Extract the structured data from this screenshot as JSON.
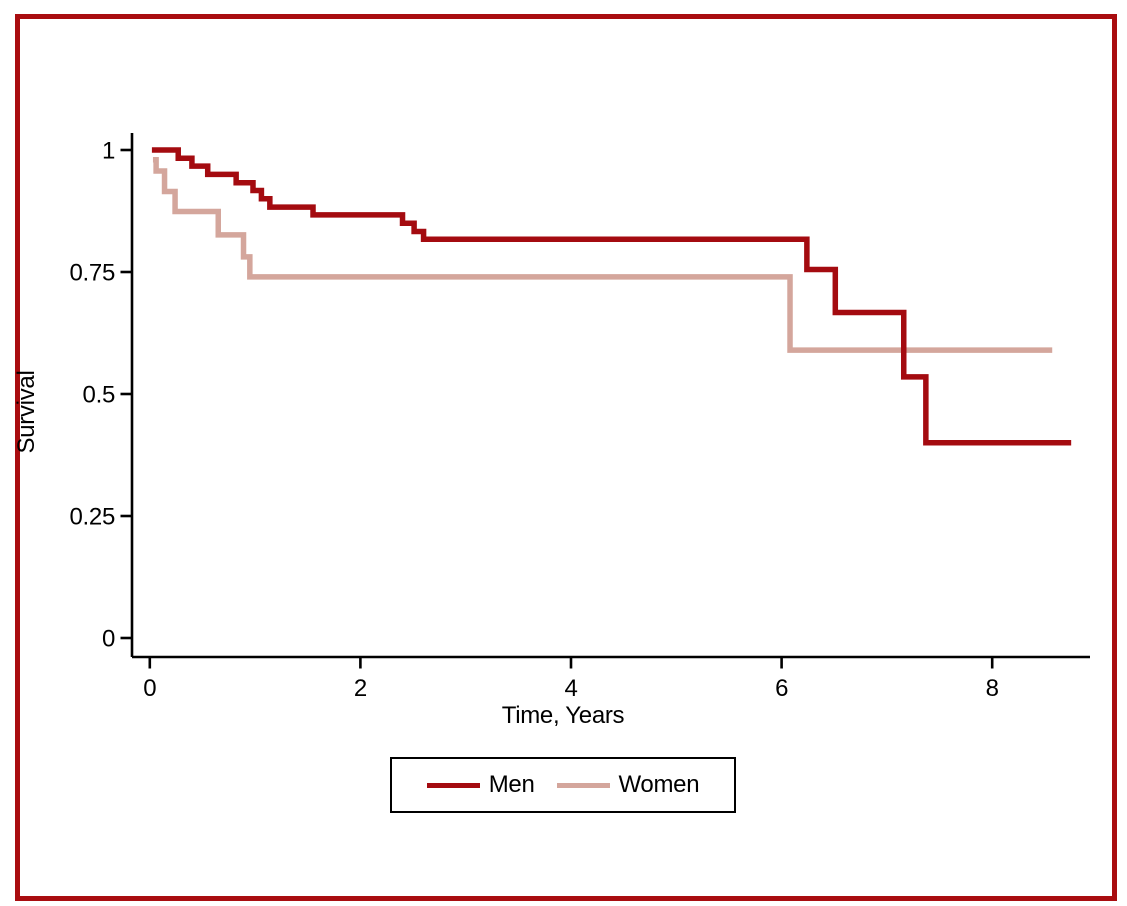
{
  "figure": {
    "border_color": "#a90d10",
    "background_color": "#ffffff",
    "axis_color": "#000000",
    "text_color": "#000000"
  },
  "chart_data": {
    "type": "line",
    "subtype": "kaplan-meier-step",
    "title": "",
    "xlabel": "Time, Years",
    "ylabel": "Survival",
    "xlim": [
      0,
      8.93
    ],
    "ylim": [
      0,
      1.03
    ],
    "grid": false,
    "legend_position": "bottom-center-boxed",
    "xticks": [
      0,
      2,
      4,
      6,
      8
    ],
    "xtick_labels": [
      "0",
      "2",
      "4",
      "6",
      "8"
    ],
    "yticks": [
      0,
      0.25,
      0.5,
      0.75,
      1
    ],
    "ytick_labels": [
      "0",
      "0.25",
      "0.5",
      "0.75",
      "1"
    ],
    "series": [
      {
        "name": "Men",
        "color": "#a40b10",
        "points": [
          [
            0.02,
            1.0
          ],
          [
            0.27,
            0.983
          ],
          [
            0.4,
            0.967
          ],
          [
            0.55,
            0.95
          ],
          [
            0.82,
            0.933
          ],
          [
            0.98,
            0.917
          ],
          [
            1.06,
            0.9
          ],
          [
            1.14,
            0.883
          ],
          [
            1.55,
            0.867
          ],
          [
            2.4,
            0.85
          ],
          [
            2.51,
            0.833
          ],
          [
            2.6,
            0.817
          ],
          [
            6.24,
            0.755
          ],
          [
            6.51,
            0.667
          ],
          [
            7.16,
            0.535
          ],
          [
            7.37,
            0.4
          ]
        ],
        "end_time": 8.75
      },
      {
        "name": "Women",
        "color": "#d4a69c",
        "points": [
          [
            0.03,
            0.98
          ],
          [
            0.06,
            0.957
          ],
          [
            0.14,
            0.915
          ],
          [
            0.24,
            0.874
          ],
          [
            0.65,
            0.826
          ],
          [
            0.89,
            0.781
          ],
          [
            0.95,
            0.74
          ],
          [
            6.08,
            0.59
          ]
        ],
        "end_time": 8.57
      }
    ]
  }
}
